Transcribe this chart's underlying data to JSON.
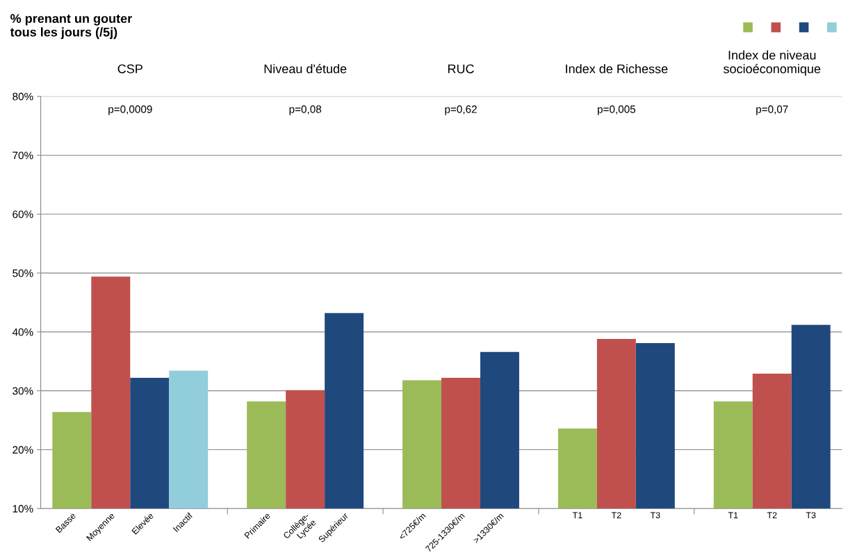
{
  "chart_data": {
    "type": "bar",
    "ylabel": "% prenant un gouter\ntous les jours (/5j)",
    "categories": [
      "Basse",
      "Moyenne",
      "Elevée",
      "Inactif",
      null,
      "Primaire",
      "Collège-\nLycée",
      "Supérieur",
      null,
      "<725€/m",
      "725-1330€/m",
      ">1330€/m",
      null,
      "T1",
      "T2",
      "T3",
      null,
      "T1",
      "T2",
      "T3"
    ],
    "values": [
      26.4,
      49.4,
      32.2,
      33.4,
      null,
      28.2,
      30.1,
      43.2,
      null,
      31.8,
      32.2,
      36.6,
      null,
      23.6,
      38.8,
      38.1,
      null,
      28.2,
      32.9,
      41.2
    ],
    "colors": [
      "#9bbb59",
      "#c0504d",
      "#1f497d",
      "#92cddc",
      null,
      "#9bbb59",
      "#c0504d",
      "#1f497d",
      null,
      "#9bbb59",
      "#c0504d",
      "#1f497d",
      null,
      "#9bbb59",
      "#c0504d",
      "#1f497d",
      null,
      "#9bbb59",
      "#c0504d",
      "#1f497d"
    ],
    "annotations": [
      "CSP",
      "Niveau d'étude",
      "RUC",
      "Index de Richesse",
      "Index de niveau\nsocioéconomique",
      "p=0,0009",
      "p=0,08",
      "p=0,62",
      "p=0,005",
      "p=0,07"
    ],
    "ylim": [
      10,
      80
    ],
    "yticks": [
      {
        "value": 10,
        "label": "10%"
      },
      {
        "value": 20,
        "label": "20%"
      },
      {
        "value": 30,
        "label": "30%"
      },
      {
        "value": 40,
        "label": "40%"
      },
      {
        "value": 50,
        "label": "50%"
      },
      {
        "value": 60,
        "label": "60%"
      },
      {
        "value": 70,
        "label": "70%"
      },
      {
        "value": 80,
        "label": "80%"
      }
    ],
    "grid": "y"
  }
}
